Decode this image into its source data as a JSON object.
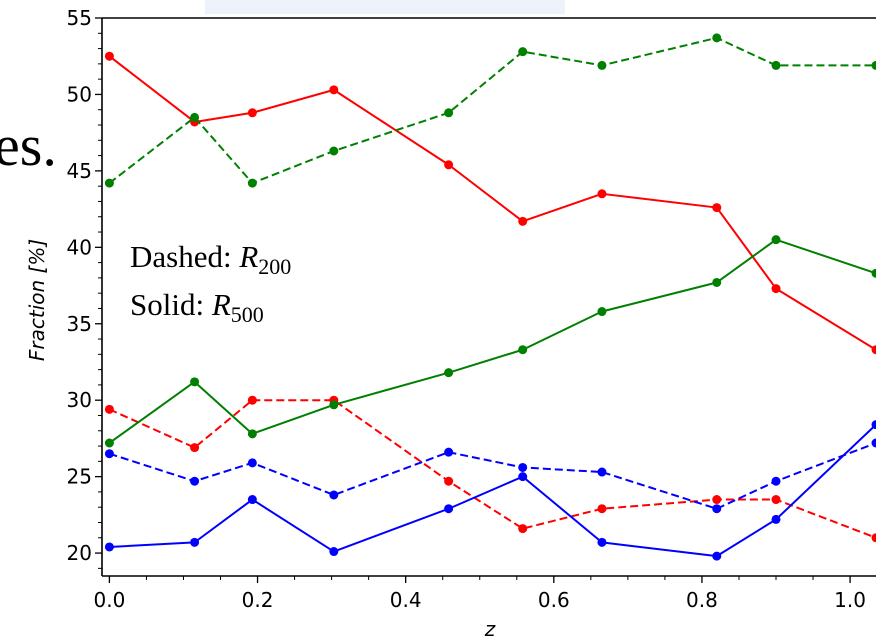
{
  "background_text": "es.",
  "annotation": {
    "dashed_prefix": "Dashed: ",
    "dashed_var": "R",
    "dashed_sub": "200",
    "solid_prefix": "Solid: ",
    "solid_var": "R",
    "solid_sub": "500"
  },
  "chart_data": {
    "type": "line",
    "title": "",
    "xlabel": "z",
    "ylabel": "Fraction [%]",
    "xlim": [
      -0.01,
      1.035
    ],
    "ylim": [
      18.5,
      55
    ],
    "xticks": [
      0.0,
      0.2,
      0.4,
      0.6,
      0.8,
      1.0
    ],
    "xtick_labels": [
      "0.0",
      "0.2",
      "0.4",
      "0.6",
      "0.8",
      "1.0"
    ],
    "yticks": [
      20,
      25,
      30,
      35,
      40,
      45,
      50,
      55
    ],
    "ytick_labels": [
      "20",
      "25",
      "30",
      "35",
      "40",
      "45",
      "50",
      "55"
    ],
    "grid": false,
    "x": [
      0.0,
      0.115,
      0.193,
      0.303,
      0.458,
      0.558,
      0.665,
      0.82,
      0.9,
      1.035
    ],
    "series": [
      {
        "color": "#ff0000",
        "style": "solid",
        "values": [
          52.5,
          48.2,
          48.8,
          50.3,
          45.4,
          41.7,
          43.5,
          42.6,
          37.3,
          33.3
        ]
      },
      {
        "color": "#ff0000",
        "style": "dashed",
        "values": [
          29.4,
          26.9,
          30.0,
          30.0,
          24.7,
          21.6,
          22.9,
          23.5,
          23.5,
          21.0
        ]
      },
      {
        "color": "#008000",
        "style": "solid",
        "values": [
          27.2,
          31.2,
          27.8,
          29.7,
          31.8,
          33.3,
          35.8,
          37.7,
          40.5,
          38.3
        ]
      },
      {
        "color": "#008000",
        "style": "dashed",
        "values": [
          44.2,
          48.5,
          44.2,
          46.3,
          48.8,
          52.8,
          51.9,
          53.7,
          51.9,
          51.9
        ]
      },
      {
        "color": "#0000ff",
        "style": "solid",
        "values": [
          20.4,
          20.7,
          23.5,
          20.1,
          22.9,
          25.0,
          20.7,
          19.8,
          22.2,
          28.4
        ]
      },
      {
        "color": "#0000ff",
        "style": "dashed",
        "values": [
          26.5,
          24.7,
          25.9,
          23.8,
          26.6,
          25.6,
          25.3,
          22.9,
          24.7,
          27.2
        ]
      }
    ]
  }
}
